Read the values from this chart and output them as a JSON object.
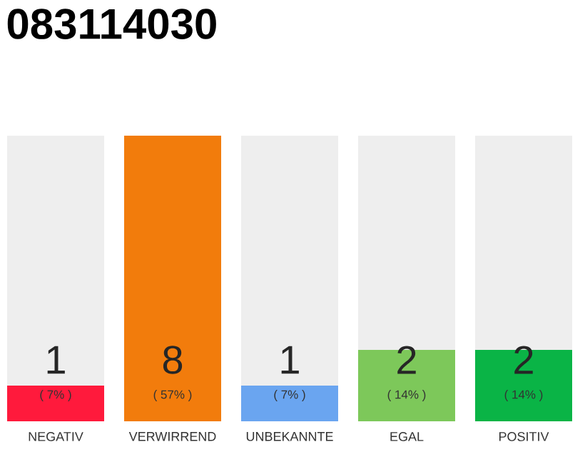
{
  "chart_data": {
    "type": "bar",
    "title": "083114030",
    "categories": [
      "NEGATIV",
      "VERWIRREND",
      "UNBEKANNTE",
      "EGAL",
      "POSITIV"
    ],
    "values": [
      1,
      8,
      1,
      2,
      2
    ],
    "colors": [
      "#ff1a3c",
      "#f27c0c",
      "#6aa5f0",
      "#7dc85a",
      "#0ab446"
    ],
    "data_labels": true,
    "annotations": [
      "( 7% )",
      "( 57% )",
      "( 7% )",
      "( 14% )",
      "( 14% )"
    ]
  }
}
